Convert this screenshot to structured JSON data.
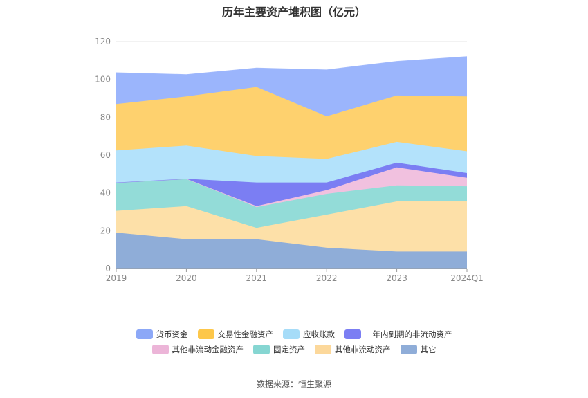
{
  "chart_data": {
    "type": "area",
    "title": "历年主要资产堆积图（亿元）",
    "categories": [
      "2019",
      "2020",
      "2021",
      "2022",
      "2023",
      "2024Q1"
    ],
    "ylim": [
      0,
      120
    ],
    "yticks": [
      "0",
      "20",
      "40",
      "60",
      "80",
      "100",
      "120"
    ],
    "stacked": true,
    "grid": true,
    "legend_position": "bottom",
    "series": [
      {
        "name": "其它",
        "color": "#8fadd8",
        "values": [
          19,
          15.5,
          15.5,
          11,
          9,
          9
        ]
      },
      {
        "name": "其他非流动资产",
        "color": "#fde0a8",
        "values": [
          11.5,
          17.5,
          6,
          17.5,
          26.5,
          26.5
        ]
      },
      {
        "name": "固定资产",
        "color": "#93dcd8",
        "values": [
          15,
          14.5,
          11,
          11,
          8.5,
          8
        ]
      },
      {
        "name": "其他非流动金融资产",
        "color": "#f1c1df",
        "values": [
          0,
          0,
          0.5,
          2,
          9.5,
          4.5
        ]
      },
      {
        "name": "一年内到期的非流动资产",
        "color": "#7b7ef3",
        "values": [
          0,
          0,
          12.5,
          4,
          2.5,
          2.5
        ]
      },
      {
        "name": "应收账款",
        "color": "#b3e2fb",
        "values": [
          17,
          17.5,
          14,
          12.5,
          11,
          11.5
        ]
      },
      {
        "name": "交易性金融资产",
        "color": "#fed16e",
        "values": [
          24.5,
          26,
          36.5,
          22.5,
          24.5,
          29
        ]
      },
      {
        "name": "货币资金",
        "color": "#9bb5fc",
        "values": [
          16.5,
          11.5,
          10,
          24.5,
          18,
          21
        ]
      }
    ]
  },
  "legend_colors": {
    "货币资金": "#8ca8f7",
    "交易性金融资产": "#fdc74a",
    "应收账款": "#a6dcf8",
    "一年内到期的非流动资产": "#7b7ef3",
    "其他非流动金融资产": "#ecb5d8",
    "固定资产": "#86d6d2",
    "其他非流动资产": "#fcd89b",
    "其它": "#8fadd8"
  },
  "legend_rows": [
    [
      "货币资金",
      "交易性金融资产",
      "应收账款",
      "一年内到期的非流动资产"
    ],
    [
      "其他非流动金融资产",
      "固定资产",
      "其他非流动资产",
      "其它"
    ]
  ],
  "source": "数据来源：恒生聚源"
}
